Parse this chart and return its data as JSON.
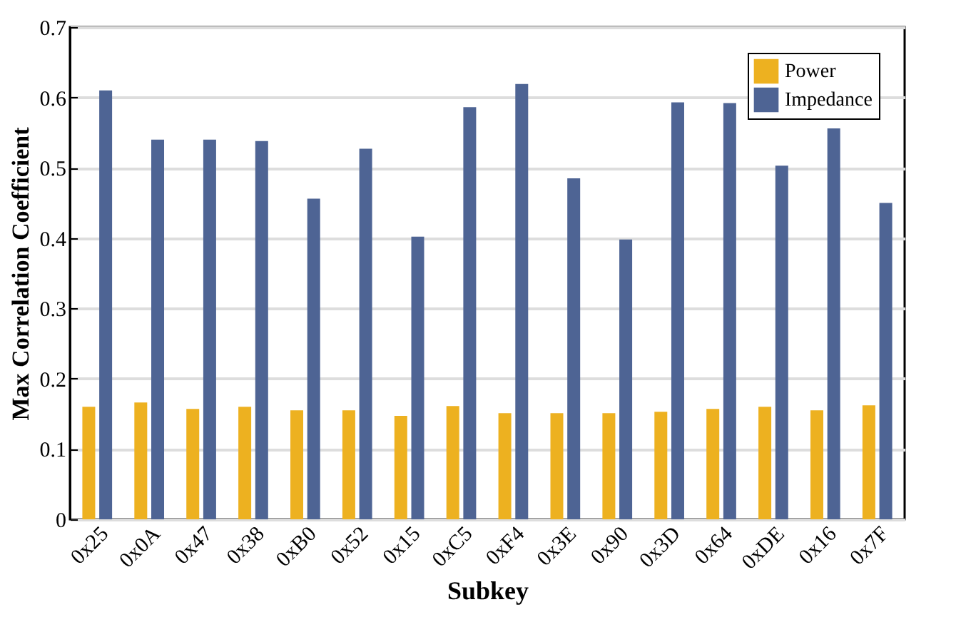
{
  "chart_data": {
    "type": "bar",
    "xlabel": "Subkey",
    "ylabel": "Max Correlation Coefficient",
    "categories": [
      "0x25",
      "0x0A",
      "0x47",
      "0x38",
      "0xB0",
      "0x52",
      "0x15",
      "0xC5",
      "0xF4",
      "0x3E",
      "0x90",
      "0x3D",
      "0x64",
      "0xDE",
      "0x16",
      "0x7F"
    ],
    "series": [
      {
        "name": "Power",
        "color": "#edb120",
        "values": [
          0.16,
          0.166,
          0.157,
          0.16,
          0.155,
          0.155,
          0.147,
          0.161,
          0.151,
          0.151,
          0.151,
          0.153,
          0.157,
          0.16,
          0.155,
          0.162
        ]
      },
      {
        "name": "Impedance",
        "color": "#4e6494",
        "values": [
          0.61,
          0.54,
          0.54,
          0.538,
          0.456,
          0.527,
          0.402,
          0.586,
          0.619,
          0.485,
          0.398,
          0.593,
          0.592,
          0.503,
          0.556,
          0.45
        ]
      }
    ],
    "ylim": [
      0,
      0.7
    ],
    "yticks": [
      {
        "value": 0,
        "label": "0"
      },
      0.1,
      0.2,
      0.3,
      0.4,
      0.5,
      0.6,
      0.7
    ],
    "grid": "y",
    "legend": "top right"
  }
}
